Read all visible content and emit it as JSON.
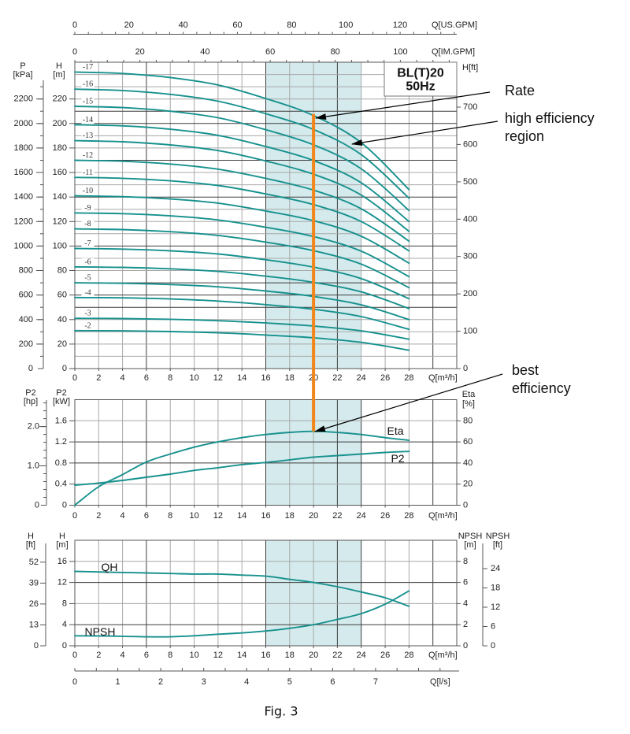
{
  "figure": {
    "caption": "Fig. 3",
    "model": "BL(T)20",
    "frequency": "50Hz"
  },
  "annotations": {
    "rate": "Rate",
    "high_efficiency": [
      "high efficiency",
      "region"
    ],
    "best_efficiency": [
      "best",
      "efficiency"
    ]
  },
  "colors": {
    "curve": "#17918e",
    "rate_line": "#f0861c",
    "high_efficiency_region": "#d4eaec",
    "grid": "#a8a8a8",
    "grid_dark": "#3c3c3c"
  },
  "chart_data": [
    {
      "type": "line",
      "x": [
        0,
        4,
        8,
        12,
        16,
        20,
        24,
        28
      ],
      "xlim": [
        0,
        32
      ],
      "xlabel": "Q[m³/h]",
      "x_ticks": [
        "0",
        "2",
        "4",
        "6",
        "8",
        "10",
        "12",
        "14",
        "16",
        "18",
        "20",
        "22",
        "24",
        "26",
        "28"
      ],
      "x_top_axes": [
        {
          "label": "Q[US.GPM]",
          "ticks": [
            "0",
            "20",
            "40",
            "60",
            "80",
            "100",
            "120"
          ]
        },
        {
          "label": "Q[IM.GPM]",
          "ticks": [
            "0",
            "20",
            "40",
            "60",
            "80",
            "100"
          ]
        }
      ],
      "y_left": {
        "label": "H",
        "unit": "[m]",
        "lim": [
          0,
          250
        ],
        "ticks": [
          "0",
          "20",
          "40",
          "60",
          "80",
          "100",
          "120",
          "140",
          "160",
          "180",
          "200",
          "220"
        ]
      },
      "y_left_outer": {
        "label": "P",
        "unit": "[kPa]",
        "ticks": [
          "0",
          "200",
          "400",
          "600",
          "800",
          "1000",
          "1200",
          "1400",
          "1600",
          "1800",
          "2000",
          "2200"
        ]
      },
      "y_right": {
        "label": "H[ft]",
        "ticks": [
          "0",
          "100",
          "200",
          "300",
          "400",
          "500",
          "600",
          "700"
        ]
      },
      "highlight_x_range": [
        16,
        24
      ],
      "rate_Q": 20,
      "grid": true,
      "series": [
        {
          "name": "-17",
          "values": [
            242,
            240.8,
            237.5,
            231.4,
            220.4,
            206.5,
            184.4,
            146
          ]
        },
        {
          "name": "-16",
          "values": [
            228,
            226.9,
            223.8,
            218.2,
            208.0,
            195.1,
            174.6,
            139
          ]
        },
        {
          "name": "-15",
          "values": [
            214,
            213.0,
            210.0,
            204.7,
            194.9,
            182.6,
            163.0,
            129
          ]
        },
        {
          "name": "-14",
          "values": [
            199,
            198.1,
            195.3,
            190.3,
            181.2,
            169.8,
            151.6,
            120
          ]
        },
        {
          "name": "-13",
          "values": [
            186,
            185.1,
            182.5,
            177.9,
            169.4,
            158.6,
            141.6,
            112
          ]
        },
        {
          "name": "-12",
          "values": [
            170,
            169.2,
            166.9,
            162.7,
            155.2,
            145.6,
            130.4,
            104
          ]
        },
        {
          "name": "-11",
          "values": [
            156,
            155.3,
            153.2,
            149.4,
            142.5,
            133.8,
            120.0,
            96
          ]
        },
        {
          "name": "-10",
          "values": [
            141,
            140.3,
            138.4,
            135.0,
            128.6,
            120.7,
            108.0,
            86
          ]
        },
        {
          "name": "-9",
          "values": [
            127,
            126.4,
            124.6,
            121.3,
            115.3,
            107.8,
            95.8,
            75
          ]
        },
        {
          "name": "-8",
          "values": [
            114,
            113.4,
            111.7,
            108.7,
            103.2,
            96.2,
            85.2,
            66
          ]
        },
        {
          "name": "-7",
          "values": [
            98,
            97.5,
            96.1,
            93.5,
            88.8,
            82.8,
            73.4,
            57
          ]
        },
        {
          "name": "-6",
          "values": [
            83,
            82.6,
            81.4,
            79.3,
            75.4,
            70.4,
            62.6,
            49
          ]
        },
        {
          "name": "-5",
          "values": [
            70,
            69.6,
            68.6,
            66.7,
            63.3,
            58.9,
            52.0,
            40
          ]
        },
        {
          "name": "-4",
          "values": [
            58,
            57.7,
            56.8,
            55.1,
            52.2,
            48.4,
            42.4,
            32
          ]
        },
        {
          "name": "-3",
          "values": [
            41,
            40.8,
            40.2,
            39.1,
            37.2,
            34.7,
            30.8,
            24
          ]
        },
        {
          "name": "-2",
          "values": [
            31,
            30.8,
            30.2,
            29.2,
            27.4,
            25.1,
            21.4,
            15
          ]
        }
      ]
    },
    {
      "type": "line",
      "x": [
        0,
        2,
        4,
        6,
        8,
        10,
        12,
        14,
        16,
        18,
        20,
        22,
        24,
        26,
        28
      ],
      "xlim": [
        0,
        32
      ],
      "xlabel": "Q[m³/h]",
      "x_ticks": [
        "0",
        "2",
        "4",
        "6",
        "8",
        "10",
        "12",
        "14",
        "16",
        "18",
        "20",
        "22",
        "24",
        "26",
        "28"
      ],
      "y_left": {
        "label": "P2",
        "unit": "[kW]",
        "lim": [
          0,
          2.0
        ],
        "ticks": [
          "0",
          "0.4",
          "0.8",
          "1.2",
          "1.6"
        ]
      },
      "y_left_outer": {
        "label": "P2",
        "unit": "[hp]",
        "ticks": [
          "0",
          "1.0",
          "2.0"
        ]
      },
      "y_right": {
        "label": "Eta",
        "unit": "[%]",
        "lim": [
          0,
          100
        ],
        "ticks": [
          "0",
          "20",
          "40",
          "60",
          "80"
        ]
      },
      "highlight_x_range": [
        16,
        24
      ],
      "grid": true,
      "series": [
        {
          "name": "Eta",
          "axis": "right",
          "values": [
            0,
            17.5,
            29,
            41,
            48.5,
            55,
            60,
            64,
            67,
            69,
            70,
            69,
            67,
            64,
            61.5
          ]
        },
        {
          "name": "P2",
          "axis": "left",
          "values": [
            0.38,
            0.42,
            0.47,
            0.53,
            0.59,
            0.66,
            0.71,
            0.77,
            0.81,
            0.86,
            0.91,
            0.94,
            0.97,
            1.0,
            1.02
          ]
        }
      ]
    },
    {
      "type": "line",
      "x": [
        0,
        2,
        4,
        6,
        8,
        10,
        12,
        14,
        16,
        18,
        20,
        22,
        24,
        26,
        28
      ],
      "xlim": [
        0,
        32
      ],
      "xlabel": "Q[m³/h]",
      "x_ticks": [
        "0",
        "2",
        "4",
        "6",
        "8",
        "10",
        "12",
        "14",
        "16",
        "18",
        "20",
        "22",
        "24",
        "26",
        "28"
      ],
      "x_secondary": {
        "label": "Q[l/s]",
        "ticks": [
          "0",
          "1",
          "2",
          "3",
          "4",
          "5",
          "6",
          "7"
        ]
      },
      "y_left": {
        "label": "H",
        "unit": "[m]",
        "lim": [
          0,
          20
        ],
        "ticks": [
          "0",
          "4",
          "8",
          "12",
          "16"
        ]
      },
      "y_left_outer": {
        "label": "H",
        "unit": "[ft]",
        "ticks": [
          "0",
          "13",
          "26",
          "39",
          "52"
        ]
      },
      "y_right": {
        "label": "NPSH",
        "unit": "[m]",
        "lim": [
          0,
          10
        ],
        "ticks": [
          "0",
          "2",
          "4",
          "6",
          "8"
        ]
      },
      "y_right_outer": {
        "label": "NPSH",
        "unit": "[ft]",
        "ticks": [
          "0",
          "6",
          "12",
          "18",
          "24"
        ]
      },
      "highlight_x_range": [
        16,
        24
      ],
      "grid": true,
      "series": [
        {
          "name": "QH",
          "axis": "left",
          "values": [
            14.1,
            14.0,
            13.9,
            13.8,
            13.7,
            13.6,
            13.6,
            13.4,
            13.2,
            12.6,
            12.0,
            11.2,
            10.2,
            9.1,
            7.5
          ]
        },
        {
          "name": "NPSH",
          "axis": "right",
          "values": [
            0.95,
            0.93,
            0.9,
            0.85,
            0.85,
            0.95,
            1.1,
            1.22,
            1.4,
            1.66,
            2.0,
            2.5,
            3.05,
            3.95,
            5.2
          ]
        }
      ]
    }
  ]
}
